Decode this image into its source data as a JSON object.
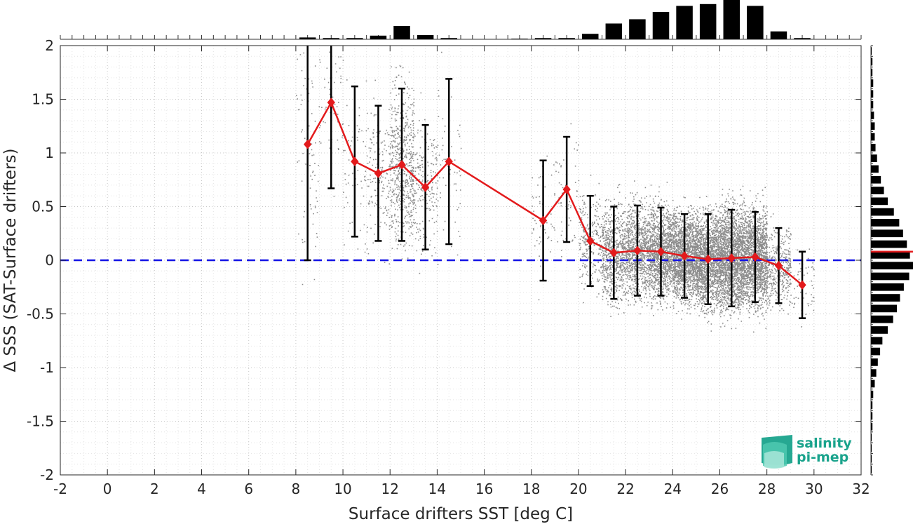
{
  "chart_data": {
    "type": "scatter",
    "xlabel": "Surface drifters SST [deg C]",
    "ylabel": "Δ SSS (SAT-Surface drifters)",
    "xlim": [
      -2,
      32
    ],
    "ylim": [
      -2,
      2
    ],
    "xticks": [
      "-2",
      "0",
      "2",
      "4",
      "6",
      "8",
      "10",
      "12",
      "14",
      "16",
      "18",
      "20",
      "22",
      "24",
      "26",
      "28",
      "30",
      "32"
    ],
    "yticks": [
      "2",
      "1.5",
      "1",
      "0.5",
      "0",
      "-0.5",
      "-1",
      "-1.5",
      "-2"
    ],
    "grid": true,
    "reference_line": {
      "y": 0,
      "style": "dashed",
      "color": "#1414e6"
    },
    "mean_series": {
      "color": "#e31a1c",
      "marker": "diamond",
      "x": [
        8.5,
        9.5,
        10.5,
        11.5,
        12.5,
        13.5,
        14.5,
        18.5,
        19.5,
        20.5,
        21.5,
        22.5,
        23.5,
        24.5,
        25.5,
        26.5,
        27.5,
        28.5,
        29.5
      ],
      "y": [
        1.08,
        1.47,
        0.92,
        0.81,
        0.89,
        0.68,
        0.92,
        0.37,
        0.66,
        0.18,
        0.07,
        0.09,
        0.08,
        0.04,
        0.01,
        0.02,
        0.03,
        -0.05,
        -0.23
      ],
      "std": [
        1.08,
        0.8,
        0.7,
        0.63,
        0.71,
        0.58,
        0.77,
        0.56,
        0.49,
        0.42,
        0.43,
        0.42,
        0.41,
        0.39,
        0.42,
        0.45,
        0.42,
        0.35,
        0.31
      ]
    },
    "scatter_color": "#8c8c8c",
    "top_histogram": {
      "bin_width": 1,
      "bin_centers": [
        8.5,
        9.5,
        10.5,
        11.5,
        12.5,
        13.5,
        14.5,
        15.5,
        16.5,
        17.5,
        18.5,
        19.5,
        20.5,
        21.5,
        22.5,
        23.5,
        24.5,
        25.5,
        26.5,
        27.5,
        28.5,
        29.5
      ],
      "counts": [
        3,
        2,
        2,
        6,
        22,
        7,
        2,
        0,
        0,
        1,
        2,
        2,
        9,
        26,
        33,
        45,
        55,
        58,
        67,
        55,
        13,
        2
      ]
    },
    "right_histogram": {
      "bin_width": 0.1,
      "bin_centers": [
        1.95,
        1.85,
        1.75,
        1.65,
        1.55,
        1.45,
        1.35,
        1.25,
        1.15,
        1.05,
        0.95,
        0.85,
        0.75,
        0.65,
        0.55,
        0.45,
        0.35,
        0.25,
        0.15,
        0.05,
        -0.05,
        -0.15,
        -0.25,
        -0.35,
        -0.45,
        -0.55,
        -0.65,
        -0.75,
        -0.85,
        -0.95,
        -1.05,
        -1.15,
        -1.25,
        -1.35,
        -1.45,
        -1.55,
        -1.65,
        -1.75,
        -1.85,
        -1.95
      ],
      "counts": [
        1,
        2,
        2,
        3,
        3,
        3,
        4,
        5,
        5,
        6,
        8,
        10,
        13,
        17,
        22,
        30,
        37,
        42,
        47,
        51,
        55,
        50,
        43,
        38,
        34,
        29,
        22,
        15,
        12,
        9,
        7,
        5,
        3,
        2,
        2,
        2,
        1,
        1,
        1,
        1
      ],
      "mean_line_y": 0.08,
      "mean_line_color": "#e31a1c"
    }
  },
  "logo": {
    "line1": "salinity",
    "line2": "pi-mep",
    "color": "#1aa38c"
  }
}
